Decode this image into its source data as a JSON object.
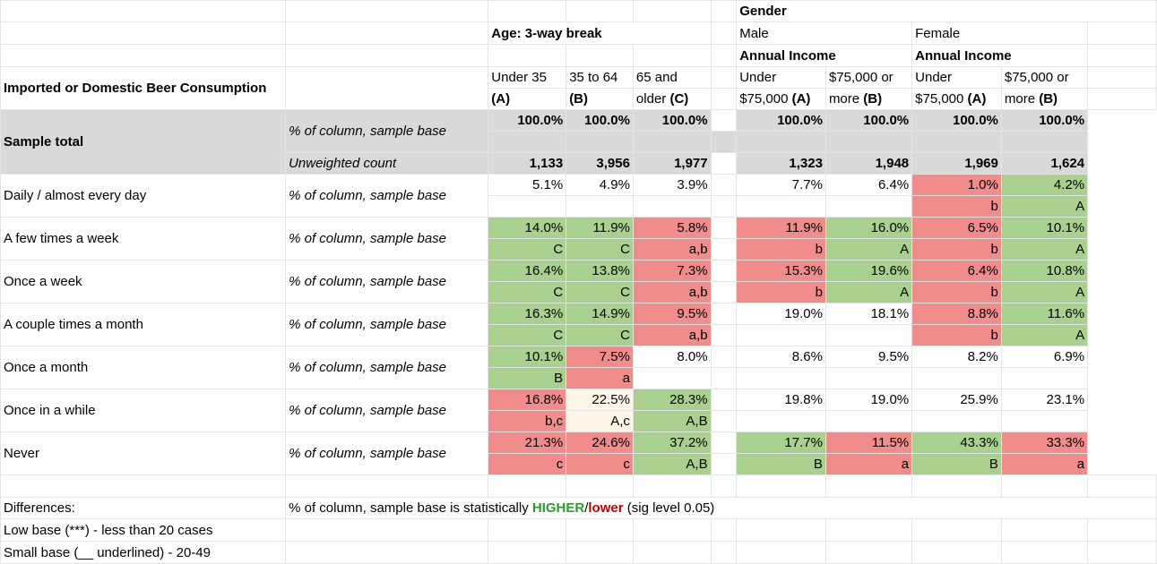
{
  "title": "Imported or Domestic Beer Consumption",
  "age": {
    "header": "Age: 3-way break",
    "cols": [
      {
        "line1": "Under 35",
        "line2": "(A)"
      },
      {
        "line1": "35 to 64",
        "line2": "(B)"
      },
      {
        "line1": "65 and",
        "line2_text": "older ",
        "line2": "(C)"
      }
    ]
  },
  "gender": {
    "header": "Gender",
    "male": "Male",
    "female": "Female",
    "income": "Annual Income",
    "cols": [
      {
        "line1": "Under",
        "line2_text": "$75,000 ",
        "line2": "(A)"
      },
      {
        "line1": "$75,000 or",
        "line2_text": "more ",
        "line2": "(B)"
      },
      {
        "line1": "Under",
        "line2_text": "$75,000 ",
        "line2": "(A)"
      },
      {
        "line1": "$75,000 or",
        "line2_text": "more ",
        "line2": "(B)"
      }
    ]
  },
  "sample": {
    "label": "Sample total",
    "metric1": "% of column, sample base",
    "metric2": "Unweighted count",
    "pct": [
      "100.0%",
      "100.0%",
      "100.0%",
      "100.0%",
      "100.0%",
      "100.0%",
      "100.0%"
    ],
    "count": [
      "1,133",
      "3,956",
      "1,977",
      "1,323",
      "1,948",
      "1,969",
      "1,624"
    ]
  },
  "rows": [
    {
      "label": "Daily / almost every day",
      "metric": "% of column, sample base",
      "vals": [
        "5.1%",
        "4.9%",
        "3.9%",
        "7.7%",
        "6.4%",
        "1.0%",
        "4.2%"
      ],
      "sig": [
        "",
        "",
        "",
        "",
        "",
        "b",
        "A"
      ],
      "fill": [
        "",
        "",
        "",
        "",
        "",
        "red",
        "green"
      ]
    },
    {
      "label": "A few times a week",
      "metric": "% of column, sample base",
      "vals": [
        "14.0%",
        "11.9%",
        "5.8%",
        "11.9%",
        "16.0%",
        "6.5%",
        "10.1%"
      ],
      "sig": [
        "C",
        "C",
        "a,b",
        "b",
        "A",
        "b",
        "A"
      ],
      "fill": [
        "green",
        "green",
        "red",
        "red",
        "green",
        "red",
        "green"
      ]
    },
    {
      "label": "Once a week",
      "metric": "% of column, sample base",
      "vals": [
        "16.4%",
        "13.8%",
        "7.3%",
        "15.3%",
        "19.6%",
        "6.4%",
        "10.8%"
      ],
      "sig": [
        "C",
        "C",
        "a,b",
        "b",
        "A",
        "b",
        "A"
      ],
      "fill": [
        "green",
        "green",
        "red",
        "red",
        "green",
        "red",
        "green"
      ]
    },
    {
      "label": "A couple times a month",
      "metric": "% of column, sample base",
      "vals": [
        "16.3%",
        "14.9%",
        "9.5%",
        "19.0%",
        "18.1%",
        "8.8%",
        "11.6%"
      ],
      "sig": [
        "C",
        "C",
        "a,b",
        "",
        "",
        "b",
        "A"
      ],
      "fill": [
        "green",
        "green",
        "red",
        "",
        "",
        "red",
        "green"
      ]
    },
    {
      "label": "Once a month",
      "metric": "% of column, sample base",
      "vals": [
        "10.1%",
        "7.5%",
        "8.0%",
        "8.6%",
        "9.5%",
        "8.2%",
        "6.9%"
      ],
      "sig": [
        "B",
        "a",
        "",
        "",
        "",
        "",
        ""
      ],
      "fill": [
        "green",
        "red",
        "",
        "",
        "",
        "",
        ""
      ]
    },
    {
      "label": "Once in a while",
      "metric": "% of column, sample base",
      "vals": [
        "16.8%",
        "22.5%",
        "28.3%",
        "19.8%",
        "19.0%",
        "25.9%",
        "23.1%"
      ],
      "sig": [
        "b,c",
        "A,c",
        "A,B",
        "",
        "",
        "",
        ""
      ],
      "fill": [
        "red",
        "cream",
        "green",
        "",
        "",
        "",
        ""
      ]
    },
    {
      "label": "Never",
      "metric": "% of column, sample base",
      "vals": [
        "21.3%",
        "24.6%",
        "37.2%",
        "17.7%",
        "11.5%",
        "43.3%",
        "33.3%"
      ],
      "sig": [
        "c",
        "c",
        "A,B",
        "B",
        "a",
        "B",
        "a"
      ],
      "fill": [
        "red",
        "red",
        "green",
        "green",
        "red",
        "green",
        "red"
      ]
    }
  ],
  "footer": {
    "differences": "Differences:",
    "note_prefix": "% of column, sample base is statistically ",
    "higher": "HIGHER",
    "slash": "/",
    "lower": "lower",
    "note_suffix": " (sig level 0.05)",
    "low_base": "Low base (***) - less than 20 cases",
    "small_base": "Small base (__ underlined) - 20-49"
  }
}
